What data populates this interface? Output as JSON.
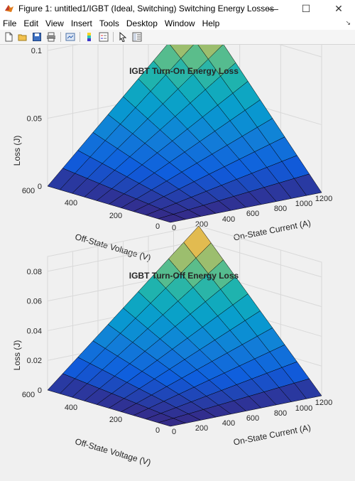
{
  "window": {
    "title": "Figure 1: untitled1/IGBT (Ideal, Switching) Switching Energy Losses",
    "controls": {
      "minimize": "—",
      "maximize": "☐",
      "close": "✕"
    }
  },
  "menu": {
    "items": [
      "File",
      "Edit",
      "View",
      "Insert",
      "Tools",
      "Desktop",
      "Window",
      "Help"
    ]
  },
  "toolbar": {
    "icons": [
      "new-figure-icon",
      "open-file-icon",
      "save-icon",
      "print-icon",
      "link-plot-icon",
      "colorbar-icon",
      "legend-icon",
      "pointer-icon",
      "property-editor-icon"
    ]
  },
  "colors": {
    "grid": "#d9d9d9",
    "axes_bg": "#f0f0f0",
    "surface_edge": "#000000"
  },
  "chart_data": [
    {
      "type": "surface",
      "title": "IGBT Turn-On Energy Loss",
      "xlabel": "On-State Current (A)",
      "ylabel": "Off-State Voltage (V)",
      "zlabel": "Loss (J)",
      "x": [
        0,
        120,
        240,
        360,
        480,
        600,
        720,
        840,
        960,
        1080,
        1200
      ],
      "y": [
        0,
        60,
        120,
        180,
        240,
        300,
        360,
        420,
        480,
        540,
        600
      ],
      "zmax": 0.11,
      "zlim": [
        0,
        0.11
      ],
      "xticks": [
        "0",
        "200",
        "400",
        "600",
        "800",
        "1000",
        "1200"
      ],
      "yticks": [
        "0",
        "200",
        "400",
        "600"
      ],
      "zticks": [
        "0",
        "0.05",
        "0.1"
      ],
      "colormap": "parula",
      "grid": true
    },
    {
      "type": "surface",
      "title": "IGBT Turn-Off Energy Loss",
      "xlabel": "On-State Current (A)",
      "ylabel": "Off-State Voltage (V)",
      "zlabel": "Loss (J)",
      "x": [
        0,
        120,
        240,
        360,
        480,
        600,
        720,
        840,
        960,
        1080,
        1200
      ],
      "y": [
        0,
        60,
        120,
        180,
        240,
        300,
        360,
        420,
        480,
        540,
        600
      ],
      "zmax": 0.09,
      "zlim": [
        0,
        0.09
      ],
      "xticks": [
        "0",
        "200",
        "400",
        "600",
        "800",
        "1000",
        "1200"
      ],
      "yticks": [
        "0",
        "200",
        "400",
        "600"
      ],
      "zticks": [
        "0",
        "0.02",
        "0.04",
        "0.06",
        "0.08"
      ],
      "colormap": "parula",
      "grid": true
    }
  ]
}
